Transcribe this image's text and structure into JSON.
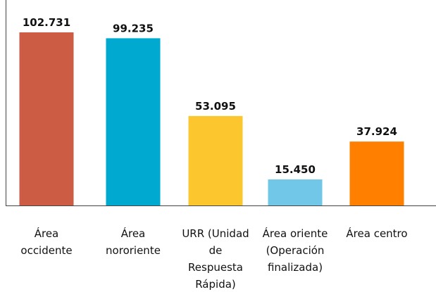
{
  "chart_data": {
    "type": "bar",
    "categories": [
      "Área occidente",
      "Área nororiente",
      "URR (Unidad de Respuesta Rápida)",
      "Área oriente (Operación finalizada)",
      "Área centro"
    ],
    "values": [
      102731,
      99235,
      53095,
      15450,
      37924
    ],
    "value_labels": [
      "102.731",
      "99.235",
      "53.095",
      "15.450",
      "37.924"
    ],
    "colors": [
      "#cd5c44",
      "#00a9d0",
      "#fcc62e",
      "#70c7e8",
      "#ff7f00"
    ]
  }
}
